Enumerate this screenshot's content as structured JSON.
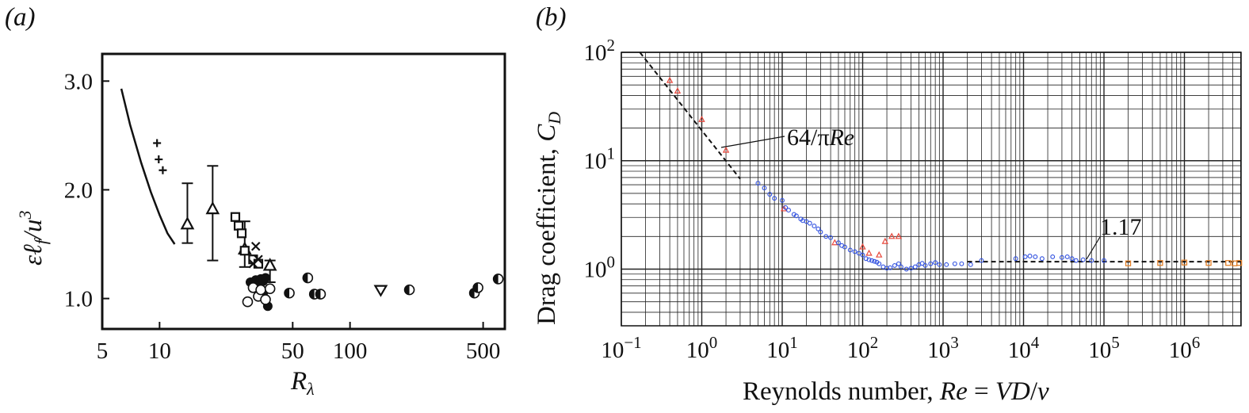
{
  "chart_data": [
    {
      "panel": "(a)",
      "type": "scatter",
      "xscale": "log",
      "xlim": [
        5,
        650
      ],
      "ylim": [
        0.72,
        3.25
      ],
      "xticks": [
        5,
        10,
        50,
        100,
        500
      ],
      "yticks": [
        1.0,
        2.0,
        3.0
      ],
      "xtick_labels": [
        "5",
        "10",
        "50",
        "100",
        "500"
      ],
      "ytick_labels": [
        "1.0",
        "2.0",
        "3.0"
      ],
      "xlabel": "R_λ",
      "ylabel": "εℓ_f/u³",
      "curve": {
        "x": [
          6.3,
          7.0,
          8.0,
          9.0,
          10.0,
          11.0,
          12.0
        ],
        "y": [
          2.93,
          2.6,
          2.25,
          1.98,
          1.77,
          1.6,
          1.5
        ]
      },
      "series": [
        {
          "marker": "plus",
          "x": [
            9.7,
            9.9,
            10.4
          ],
          "y": [
            2.43,
            2.28,
            2.18
          ]
        },
        {
          "marker": "triangle-up",
          "x": [
            14,
            19,
            28,
            38
          ],
          "y": [
            1.68,
            1.82,
            1.45,
            1.3
          ],
          "err_low": [
            1.51,
            1.35,
            1.29,
            1.15
          ],
          "err_high": [
            2.06,
            2.22,
            1.71,
            1.35
          ]
        },
        {
          "marker": "square",
          "x": [
            25,
            26,
            27,
            28,
            31,
            33
          ],
          "y": [
            1.75,
            1.67,
            1.6,
            1.44,
            1.36,
            1.32
          ]
        },
        {
          "marker": "x",
          "x": [
            32,
            33,
            31
          ],
          "y": [
            1.48,
            1.36,
            1.32
          ]
        },
        {
          "marker": "circle-filled",
          "x": [
            30,
            31,
            32,
            33,
            34,
            35,
            36,
            35,
            37
          ],
          "y": [
            1.15,
            1.12,
            1.17,
            1.13,
            1.18,
            1.16,
            1.19,
            1.05,
            0.93
          ]
        },
        {
          "marker": "circle-open",
          "x": [
            29,
            31,
            33,
            34,
            36,
            38
          ],
          "y": [
            0.97,
            1.1,
            1.02,
            1.08,
            0.99,
            1.09
          ]
        },
        {
          "marker": "circle-half",
          "x": [
            48,
            60,
            65,
            70,
            205,
            450,
            470,
            600
          ],
          "y": [
            1.05,
            1.19,
            1.04,
            1.04,
            1.08,
            1.05,
            1.1,
            1.18
          ]
        },
        {
          "marker": "triangle-down",
          "x": [
            145
          ],
          "y": [
            1.08
          ]
        }
      ]
    },
    {
      "panel": "(b)",
      "type": "scatter",
      "xscale": "log",
      "yscale": "log",
      "xlim": [
        0.1,
        5000000
      ],
      "ylim": [
        0.3,
        100
      ],
      "grid": true,
      "xtick_labels": [
        "10−1",
        "100",
        "101",
        "102",
        "103",
        "104",
        "105",
        "106"
      ],
      "ytick_labels": [
        "100",
        "101",
        "102"
      ],
      "xlabel": "Reynolds number, Re = VD/ν",
      "ylabel": "Drag coefficient, C_D",
      "annotations": [
        "64/πRe",
        "1.17"
      ],
      "stokes_line": {
        "x": [
          0.17,
          3.0
        ],
        "y": [
          120,
          6.8
        ]
      },
      "newton_line": {
        "x": [
          2000,
          5000000
        ],
        "y": [
          1.17,
          1.17
        ]
      },
      "series": [
        {
          "color": "#e8483c",
          "marker": "triangle-open",
          "x": [
            0.4,
            0.5,
            1.0,
            2.0,
            10.5,
            45,
            100,
            120,
            160,
            190,
            230,
            280
          ],
          "y": [
            55,
            44,
            24,
            12.5,
            3.6,
            1.75,
            1.6,
            1.4,
            1.35,
            1.8,
            2.0,
            2.0
          ]
        },
        {
          "color": "#3151e0",
          "marker": "circle-open",
          "x": [
            5,
            6,
            7,
            8,
            10,
            11,
            12,
            14,
            15,
            17,
            18,
            20,
            22,
            25,
            28,
            30,
            35,
            40,
            50,
            55,
            60,
            70,
            80,
            90,
            100,
            110,
            120,
            130,
            140,
            150,
            160,
            180,
            200,
            220,
            250,
            280,
            300,
            350,
            400,
            450,
            500,
            550,
            600,
            700,
            800,
            900,
            1100,
            1400,
            1700,
            2200,
            3000,
            8000,
            10500,
            12000,
            14000,
            17000,
            23000,
            30000,
            35000,
            40000,
            45000,
            55000,
            70000,
            100000
          ],
          "y": [
            6.2,
            5.6,
            4.9,
            4.5,
            4.3,
            3.7,
            3.5,
            3.2,
            3.1,
            2.9,
            2.8,
            2.75,
            2.65,
            2.5,
            2.35,
            2.2,
            2.0,
            1.95,
            1.75,
            1.65,
            1.6,
            1.5,
            1.45,
            1.4,
            1.35,
            1.25,
            1.22,
            1.2,
            1.18,
            1.16,
            1.12,
            1.05,
            1.02,
            1.03,
            1.08,
            1.12,
            1.05,
            1.0,
            1.02,
            1.05,
            1.1,
            1.13,
            1.08,
            1.12,
            1.15,
            1.1,
            1.1,
            1.12,
            1.12,
            1.1,
            1.2,
            1.25,
            1.3,
            1.32,
            1.3,
            1.25,
            1.3,
            1.28,
            1.3,
            1.25,
            1.2,
            1.22,
            1.2,
            1.2
          ]
        },
        {
          "color": "#e5822a",
          "marker": "square-open",
          "x": [
            200000,
            500000,
            1000000,
            2000000,
            3500000,
            4200000,
            4800000
          ],
          "y": [
            1.13,
            1.14,
            1.15,
            1.14,
            1.14,
            1.13,
            1.14
          ]
        }
      ]
    }
  ]
}
